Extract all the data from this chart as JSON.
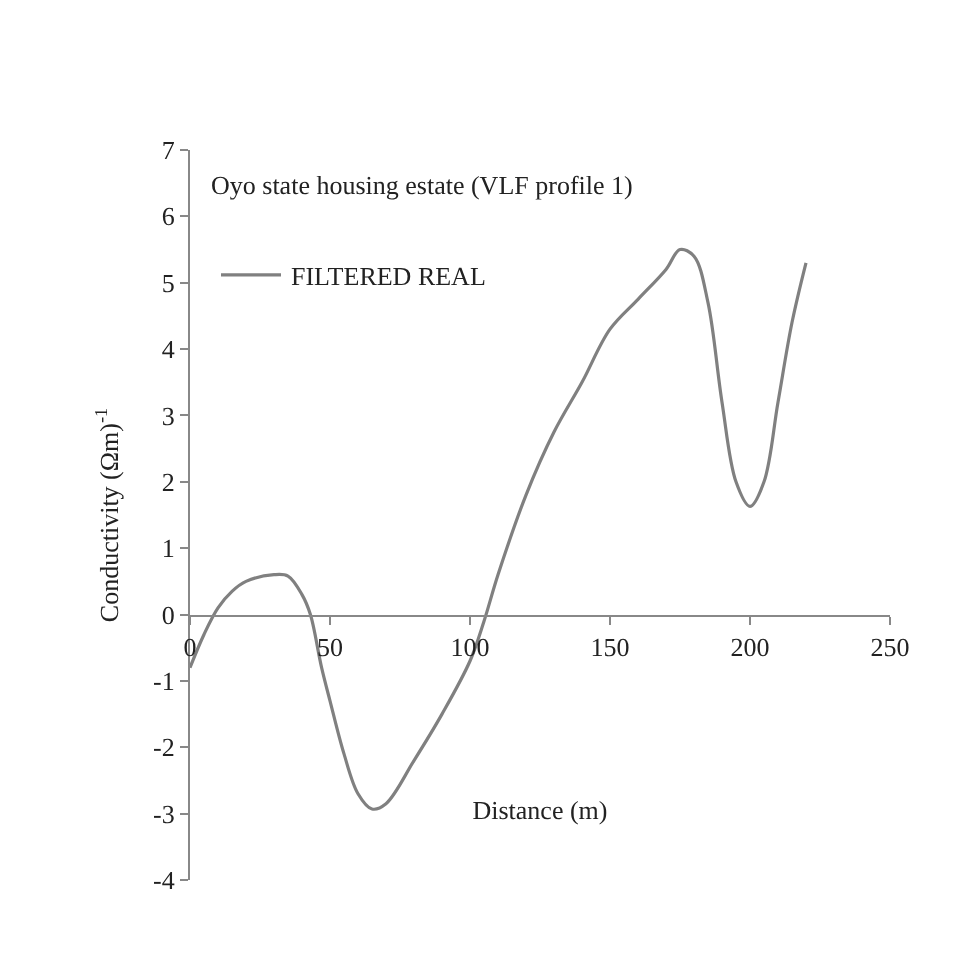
{
  "chart_data": {
    "type": "line",
    "title": "Oyo state housing estate (VLF profile 1)",
    "xlabel": "Distance (m)",
    "ylabel": "Conductivity (Ωm)$^{-1}$",
    "x": [
      0,
      5,
      10,
      15,
      20,
      30,
      35,
      40,
      43,
      47,
      50,
      55,
      60,
      65,
      70,
      80,
      90,
      100,
      105,
      110,
      120,
      130,
      140,
      150,
      160,
      170,
      175,
      180,
      185,
      190,
      195,
      200,
      205,
      210,
      215,
      220
    ],
    "series": [
      {
        "name": "FILTERED REAL",
        "color": "#808080",
        "values": [
          -0.8,
          -0.3,
          0.1,
          0.35,
          0.5,
          0.6,
          0.58,
          0.3,
          0,
          -0.8,
          -1.3,
          -2.1,
          -2.7,
          -2.93,
          -2.85,
          -2.2,
          -1.5,
          -0.7,
          -0.1,
          0.6,
          1.8,
          2.75,
          3.5,
          4.3,
          4.75,
          5.2,
          5.5,
          5.4,
          4.7,
          3.2,
          2.0,
          1.63,
          2.0,
          3.2,
          4.4,
          5.3
        ]
      }
    ],
    "xlim": [
      0,
      250
    ],
    "xticks": [
      0,
      50,
      100,
      150,
      200,
      250
    ],
    "ylim": [
      -4,
      7
    ],
    "yticks": [
      -4,
      -3,
      -2,
      -1,
      0,
      1,
      2,
      3,
      4,
      5,
      6,
      7
    ],
    "grid": false,
    "legend": "top left",
    "marker": "none",
    "line_style": "solid"
  }
}
